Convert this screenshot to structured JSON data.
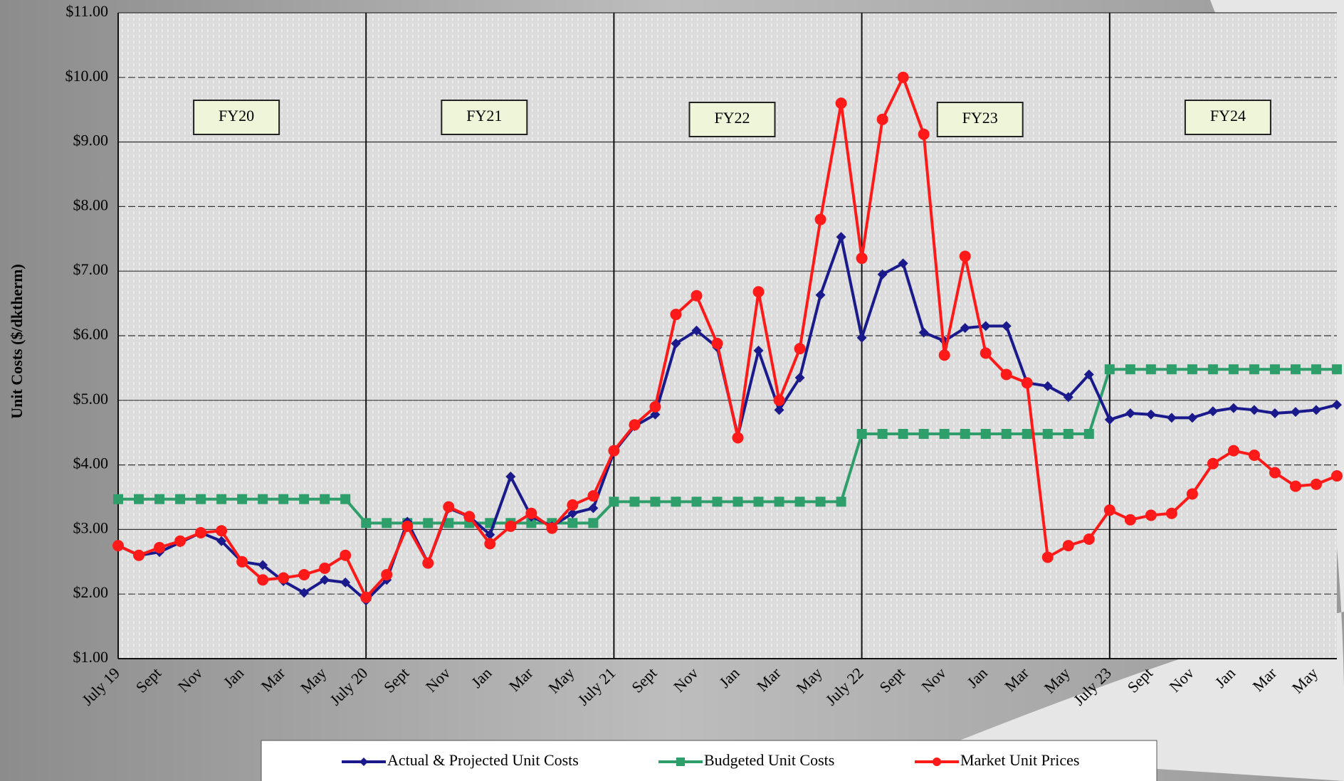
{
  "chart_data": {
    "type": "line",
    "ylabel": "Unit Costs ($/dktherm)",
    "categories": [
      "July 19",
      null,
      "Sept",
      null,
      "Nov",
      null,
      "Jan",
      null,
      "Mar",
      null,
      "May",
      null,
      "July 20",
      null,
      "Sept",
      null,
      "Nov",
      null,
      "Jan",
      null,
      "Mar",
      null,
      "May",
      null,
      "July 21",
      null,
      "Sept",
      null,
      "Nov",
      null,
      "Jan",
      null,
      "Mar",
      null,
      "May",
      null,
      "July 22",
      null,
      "Sept",
      null,
      "Nov",
      null,
      "Jan",
      null,
      "Mar",
      null,
      "May",
      null,
      "July 23",
      null,
      "Sept",
      null,
      "Nov",
      null,
      "Jan",
      null,
      "Mar",
      null,
      "May",
      null
    ],
    "series": [
      {
        "name": "Actual & Projected Unit Costs",
        "color": "#1a1a8c",
        "marker": "diamond",
        "values": [
          2.75,
          2.6,
          2.65,
          2.8,
          2.95,
          2.82,
          2.5,
          2.45,
          2.2,
          2.02,
          2.22,
          2.18,
          1.9,
          2.22,
          3.12,
          2.48,
          3.33,
          3.2,
          2.92,
          3.82,
          3.2,
          3.05,
          3.25,
          3.33,
          4.2,
          4.6,
          4.78,
          5.88,
          6.08,
          5.82,
          4.45,
          5.77,
          4.85,
          5.35,
          6.63,
          7.53,
          5.97,
          6.95,
          7.12,
          6.05,
          5.92,
          6.12,
          6.15,
          6.15,
          5.27,
          5.22,
          5.05,
          5.4,
          4.7,
          4.8,
          4.78,
          4.73,
          4.73,
          4.83,
          4.88,
          4.85,
          4.8,
          4.82,
          4.85,
          4.93
        ]
      },
      {
        "name": "Budgeted Unit Costs",
        "color": "#2e9e6a",
        "marker": "square",
        "values": [
          3.47,
          3.47,
          3.47,
          3.47,
          3.47,
          3.47,
          3.47,
          3.47,
          3.47,
          3.47,
          3.47,
          3.47,
          3.1,
          3.1,
          3.1,
          3.1,
          3.1,
          3.1,
          3.1,
          3.1,
          3.1,
          3.1,
          3.1,
          3.1,
          3.43,
          3.43,
          3.43,
          3.43,
          3.43,
          3.43,
          3.43,
          3.43,
          3.43,
          3.43,
          3.43,
          3.43,
          4.48,
          4.48,
          4.48,
          4.48,
          4.48,
          4.48,
          4.48,
          4.48,
          4.48,
          4.48,
          4.48,
          4.48,
          5.48,
          5.48,
          5.48,
          5.48,
          5.48,
          5.48,
          5.48,
          5.48,
          5.48,
          5.48,
          5.48,
          5.48
        ]
      },
      {
        "name": "Market Unit Prices",
        "color": "#ff1a1a",
        "marker": "circle",
        "values": [
          2.75,
          2.6,
          2.72,
          2.82,
          2.95,
          2.98,
          2.5,
          2.22,
          2.25,
          2.3,
          2.4,
          2.6,
          1.95,
          2.3,
          3.05,
          2.48,
          3.35,
          3.2,
          2.78,
          3.05,
          3.25,
          3.02,
          3.38,
          3.52,
          4.22,
          4.62,
          4.9,
          6.33,
          6.62,
          5.88,
          4.42,
          6.68,
          5.0,
          5.8,
          7.8,
          9.6,
          7.2,
          9.35,
          10.0,
          9.12,
          5.7,
          7.23,
          5.73,
          5.4,
          5.27,
          2.57,
          2.75,
          2.85,
          3.3,
          3.15,
          3.22,
          3.25,
          3.55,
          4.02,
          4.22,
          4.15,
          3.88,
          3.67,
          3.7,
          3.83
        ]
      }
    ],
    "annotations": [
      {
        "text": "FY20"
      },
      {
        "text": "FY21"
      },
      {
        "text": "FY22"
      },
      {
        "text": "FY23"
      },
      {
        "text": "FY24"
      }
    ],
    "ylim": [
      1,
      11
    ],
    "yticks": [
      {
        "value": 1,
        "label": "$1.00"
      },
      {
        "value": 2,
        "label": "$2.00"
      },
      {
        "value": 3,
        "label": "$3.00"
      },
      {
        "value": 4,
        "label": "$4.00"
      },
      {
        "value": 5,
        "label": "$5.00"
      },
      {
        "value": 6,
        "label": "$6.00"
      },
      {
        "value": 7,
        "label": "$7.00"
      },
      {
        "value": 8,
        "label": "$8.00"
      },
      {
        "value": 9,
        "label": "$9.00"
      },
      {
        "value": 10,
        "label": "$10.00"
      },
      {
        "value": 11,
        "label": "$11.00"
      }
    ],
    "grid": true,
    "legend": "bottom"
  }
}
